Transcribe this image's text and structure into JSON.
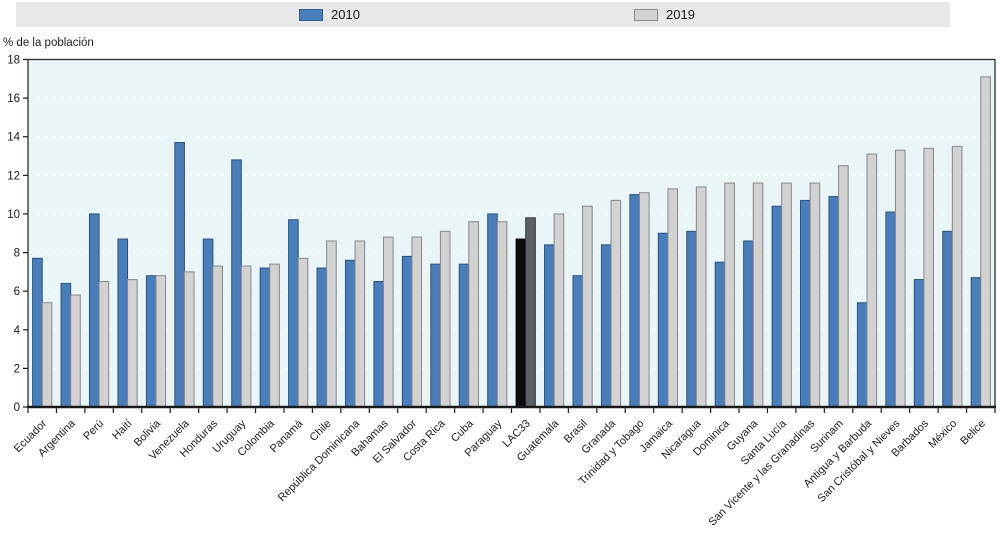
{
  "legend": {
    "background": "#e7e7e7",
    "items": [
      {
        "label": "2010",
        "swatch_color": "#4a7ebb",
        "swatch_border": "#2e5a92"
      },
      {
        "label": "2019",
        "swatch_color": "#d2d2d2",
        "swatch_border": "#8a8a8a"
      }
    ]
  },
  "chart_data": {
    "type": "bar",
    "title": "",
    "xlabel": "",
    "ylabel": "% de la población",
    "ylim": [
      0,
      18
    ],
    "ytick_step": 2,
    "grid": true,
    "legend_position": "top",
    "plot_background": "#eaf5f8",
    "axis_color": "#2e2e2e",
    "categories": [
      "Ecuador",
      "Argentina",
      "Perú",
      "Haití",
      "Bolivia",
      "Venezuela",
      "Honduras",
      "Uruguay",
      "Colombia",
      "Panamá",
      "Chile",
      "República Dominicana",
      "Bahamas",
      "El Salvador",
      "Costa Rica",
      "Cuba",
      "Paraguay",
      "LAC33",
      "Guatemala",
      "Brasil",
      "Granada",
      "Trinidad y Tobago",
      "Jamaica",
      "Nicaragua",
      "Dominica",
      "Guyana",
      "Santa Lucía",
      "San Vicente y las Granadinas",
      "Surinam",
      "Antigua y Barbuda",
      "San Cristóbal y Nieves",
      "Barbados",
      "México",
      "Belice"
    ],
    "series": [
      {
        "name": "2010",
        "color": "#4a7ebb",
        "border": "#28517e",
        "values": [
          7.7,
          6.4,
          10.0,
          8.7,
          6.8,
          13.7,
          8.7,
          12.8,
          7.2,
          9.7,
          7.2,
          7.6,
          6.5,
          7.8,
          7.4,
          7.4,
          10.0,
          8.7,
          8.4,
          6.8,
          8.4,
          11.0,
          9.0,
          9.1,
          7.5,
          8.6,
          10.4,
          10.7,
          10.9,
          5.4,
          10.1,
          6.6,
          9.1,
          6.7
        ]
      },
      {
        "name": "2019",
        "color": "#d2d2d2",
        "border": "#878787",
        "values": [
          5.4,
          5.8,
          6.5,
          6.6,
          6.8,
          7.0,
          7.3,
          7.3,
          7.4,
          7.7,
          8.6,
          8.6,
          8.8,
          8.8,
          9.1,
          9.6,
          9.6,
          9.8,
          10.0,
          10.4,
          10.7,
          11.1,
          11.3,
          11.4,
          11.6,
          11.6,
          11.6,
          11.6,
          12.5,
          13.1,
          13.3,
          13.4,
          13.5,
          17.1
        ]
      }
    ],
    "highlight": {
      "category": "LAC33",
      "series_colors": [
        {
          "fill": "#0c0c0c",
          "border": "#000000"
        },
        {
          "fill": "#5b6167",
          "border": "#303437"
        }
      ]
    }
  }
}
